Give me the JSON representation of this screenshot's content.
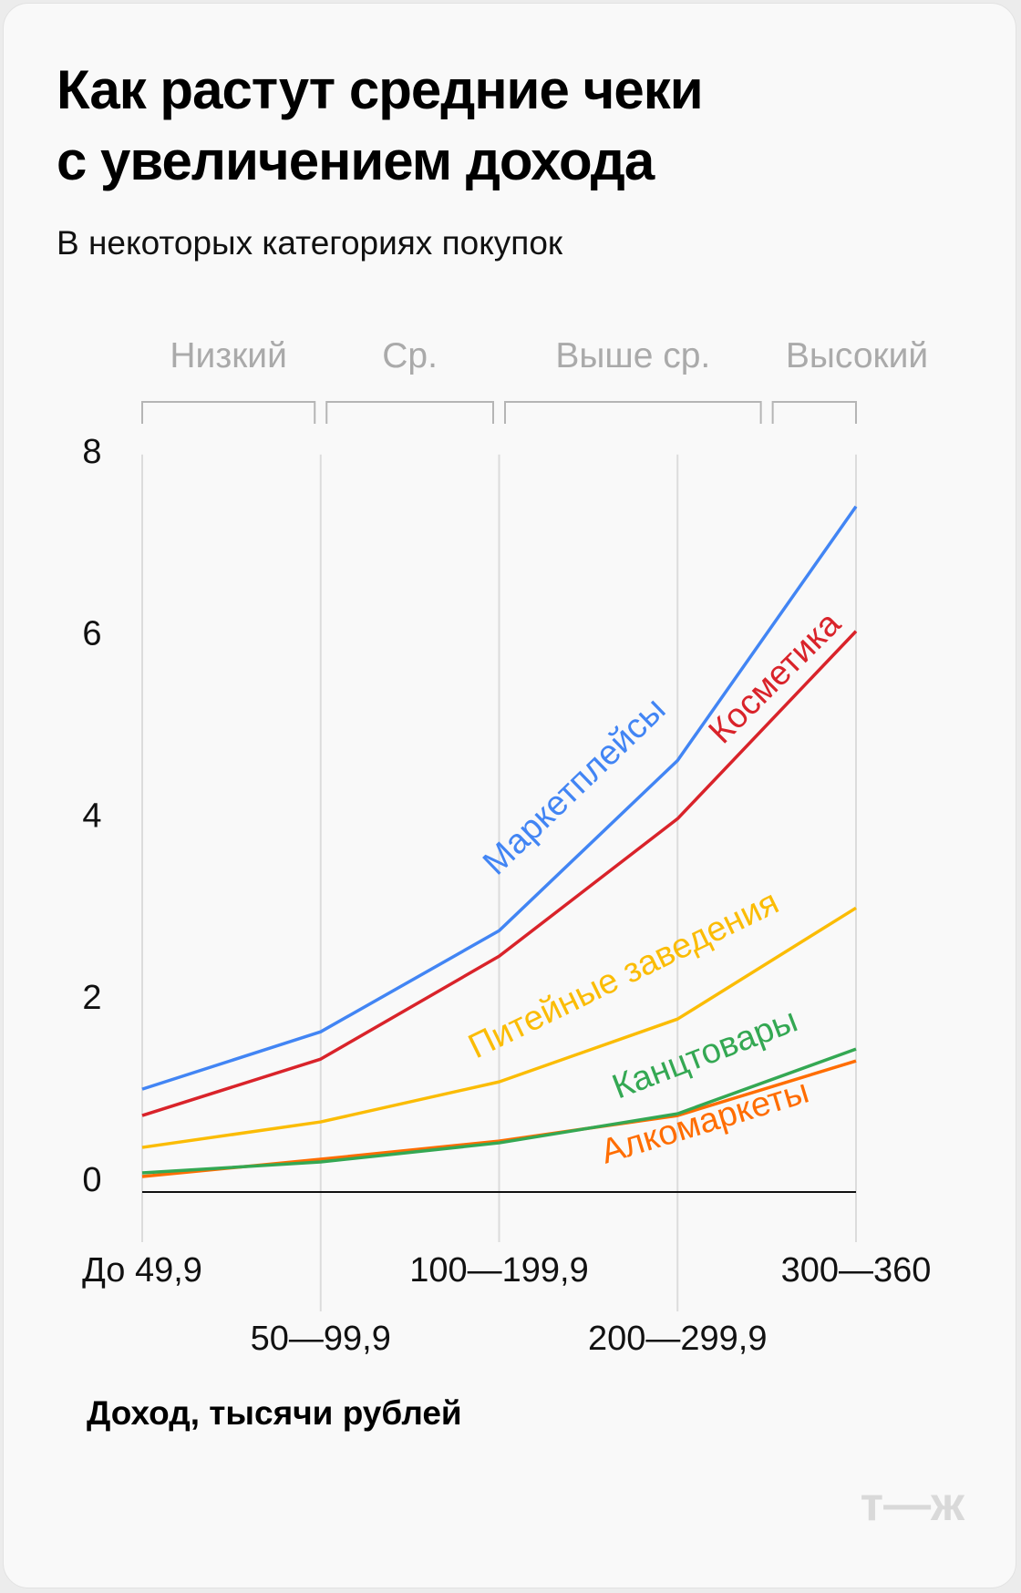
{
  "header": {
    "title_line1": "Как растут средние чеки",
    "title_line2": "с увеличением дохода",
    "subtitle": "В некоторых категориях покупок"
  },
  "logo": "т—ж",
  "chart_data": {
    "type": "line",
    "title": "Как растут средние чеки с увеличением дохода",
    "subtitle": "В некоторых категориях покупок",
    "xlabel": "Доход, тысячи рублей",
    "ylabel": "",
    "categories": [
      "До 49,9",
      "50—99,9",
      "100—199,9",
      "200—299,9",
      "300—360"
    ],
    "ylim": [
      0,
      8
    ],
    "yticks": [
      "0",
      "2",
      "4",
      "6",
      "8"
    ],
    "grid": "vertical",
    "income_groups": [
      {
        "label": "Низкий",
        "from": 0,
        "to": 1
      },
      {
        "label": "Ср.",
        "from": 1,
        "to": 2
      },
      {
        "label": "Выше ср.",
        "from": 2,
        "to": 3.5
      },
      {
        "label": "Высокий",
        "from": 3.5,
        "to": 4
      }
    ],
    "series": [
      {
        "name": "Маркетплейсы",
        "color": "#4285f4",
        "values": [
          1.13,
          1.76,
          2.87,
          4.74,
          7.53
        ]
      },
      {
        "name": "Косметика",
        "color": "#d9232a",
        "values": [
          0.84,
          1.46,
          2.59,
          4.1,
          6.16
        ]
      },
      {
        "name": "Питейные заведения",
        "color": "#fbbc05",
        "values": [
          0.49,
          0.77,
          1.21,
          1.9,
          3.12
        ]
      },
      {
        "name": "Канцтовары",
        "color": "#34a853",
        "values": [
          0.21,
          0.33,
          0.54,
          0.86,
          1.57
        ]
      },
      {
        "name": "Алкомаркеты",
        "color": "#ff6d00",
        "values": [
          0.17,
          0.36,
          0.56,
          0.84,
          1.44
        ]
      }
    ]
  }
}
